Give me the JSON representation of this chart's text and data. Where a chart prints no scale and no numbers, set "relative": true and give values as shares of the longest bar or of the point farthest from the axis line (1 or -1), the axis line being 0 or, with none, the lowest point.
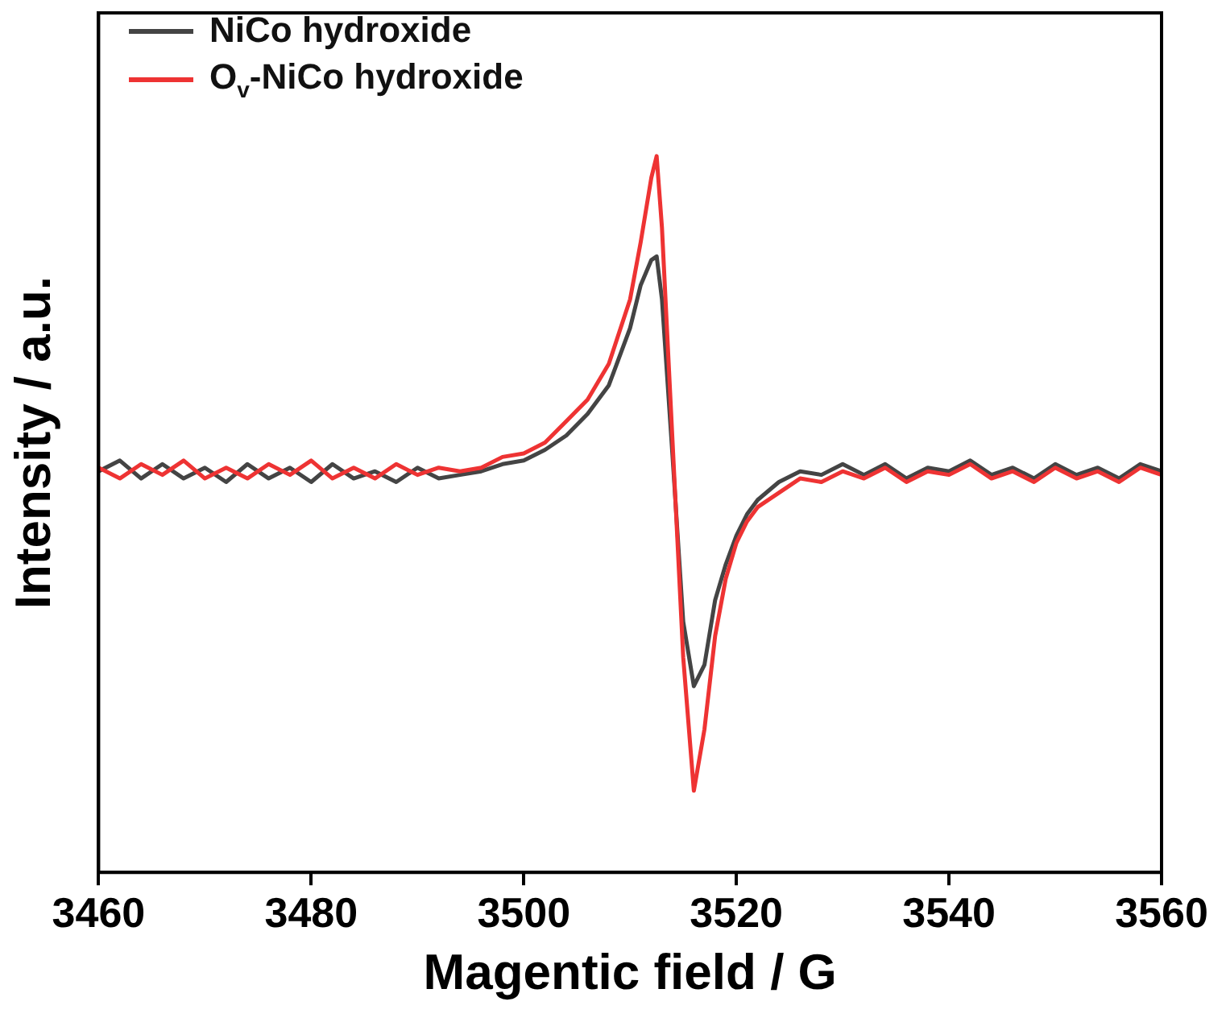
{
  "chart_data": {
    "type": "line",
    "xlabel": "Magentic field / G",
    "ylabel": "Intensity / a.u.",
    "relative": true,
    "xlim": [
      3460,
      3560
    ],
    "xticks": [
      3460,
      3480,
      3500,
      3520,
      3540,
      3560
    ],
    "legend": "top left",
    "grid": false,
    "marker": "none",
    "line_style": "solid",
    "series": [
      {
        "name": "NiCo hydroxide",
        "color": "#444444",
        "x": [
          3460,
          3462,
          3464,
          3466,
          3468,
          3470,
          3472,
          3474,
          3476,
          3478,
          3480,
          3482,
          3484,
          3486,
          3488,
          3490,
          3492,
          3494,
          3496,
          3498,
          3500,
          3502,
          3504,
          3506,
          3508,
          3510,
          3511,
          3512,
          3512.5,
          3513,
          3514,
          3515,
          3516,
          3517,
          3518,
          3519,
          3520,
          3521,
          3522,
          3524,
          3526,
          3528,
          3530,
          3532,
          3534,
          3536,
          3538,
          3540,
          3542,
          3544,
          3546,
          3548,
          3550,
          3552,
          3554,
          3556,
          3558,
          3560
        ],
        "values": [
          0.56,
          0.575,
          0.55,
          0.57,
          0.55,
          0.565,
          0.545,
          0.57,
          0.55,
          0.565,
          0.545,
          0.57,
          0.55,
          0.56,
          0.545,
          0.565,
          0.55,
          0.555,
          0.56,
          0.57,
          0.575,
          0.59,
          0.61,
          0.64,
          0.68,
          0.76,
          0.82,
          0.855,
          0.86,
          0.8,
          0.58,
          0.35,
          0.26,
          0.29,
          0.38,
          0.43,
          0.47,
          0.5,
          0.52,
          0.545,
          0.56,
          0.555,
          0.57,
          0.555,
          0.57,
          0.55,
          0.565,
          0.56,
          0.575,
          0.555,
          0.565,
          0.55,
          0.57,
          0.555,
          0.565,
          0.55,
          0.57,
          0.56
        ]
      },
      {
        "name": "O$_{v}$-NiCo hydroxide",
        "color": "#ee3333",
        "x": [
          3460,
          3462,
          3464,
          3466,
          3468,
          3470,
          3472,
          3474,
          3476,
          3478,
          3480,
          3482,
          3484,
          3486,
          3488,
          3490,
          3492,
          3494,
          3496,
          3498,
          3500,
          3502,
          3504,
          3506,
          3508,
          3510,
          3511,
          3512,
          3512.5,
          3513,
          3514,
          3515,
          3516,
          3517,
          3518,
          3519,
          3520,
          3521,
          3522,
          3524,
          3526,
          3528,
          3530,
          3532,
          3534,
          3536,
          3538,
          3540,
          3542,
          3544,
          3546,
          3548,
          3550,
          3552,
          3554,
          3556,
          3558,
          3560
        ],
        "values": [
          0.565,
          0.55,
          0.57,
          0.555,
          0.575,
          0.55,
          0.565,
          0.55,
          0.57,
          0.555,
          0.575,
          0.55,
          0.565,
          0.55,
          0.57,
          0.555,
          0.565,
          0.56,
          0.565,
          0.58,
          0.585,
          0.6,
          0.63,
          0.66,
          0.71,
          0.8,
          0.88,
          0.97,
          1.0,
          0.9,
          0.6,
          0.3,
          0.114,
          0.2,
          0.33,
          0.41,
          0.46,
          0.49,
          0.51,
          0.53,
          0.55,
          0.545,
          0.56,
          0.55,
          0.565,
          0.545,
          0.56,
          0.555,
          0.57,
          0.55,
          0.56,
          0.545,
          0.565,
          0.55,
          0.56,
          0.545,
          0.565,
          0.555
        ]
      }
    ]
  }
}
